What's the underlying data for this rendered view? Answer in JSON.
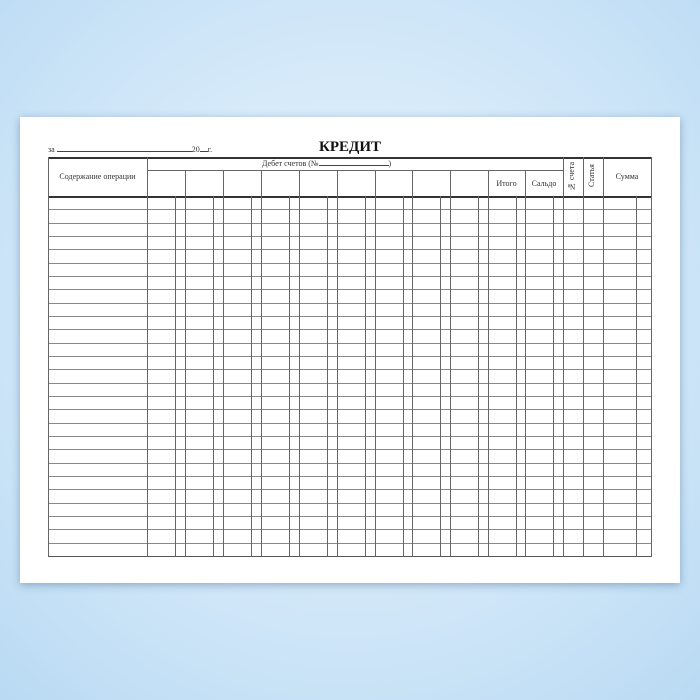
{
  "form": {
    "period_prefix": "за",
    "year_prefix": "20",
    "year_suffix": "г.",
    "title": "КРЕДИТ",
    "columns": {
      "operation": "Содержание операции",
      "debit_accounts": "Дебет счетов (№",
      "debit_close": ")",
      "total": "Итого",
      "balance": "Сальдо",
      "account_no": "№ счета",
      "article": "Статья",
      "amount": "Сумма"
    }
  }
}
